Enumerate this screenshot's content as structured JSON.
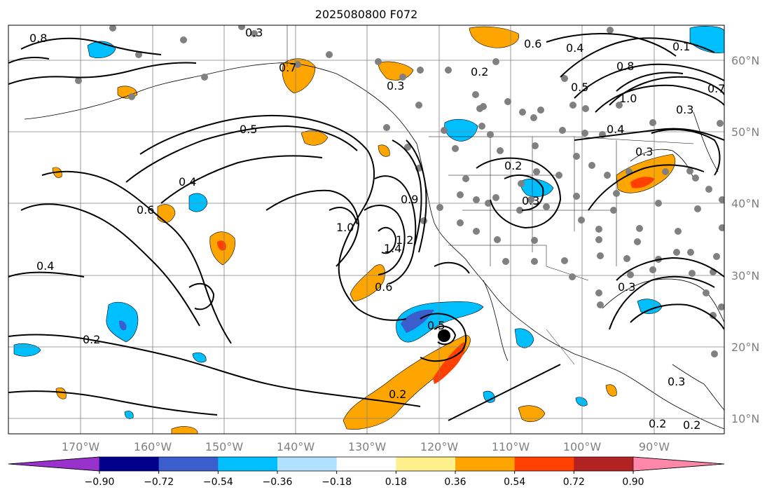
{
  "title": "2025080800 F072",
  "lon_labels": [
    "170°W",
    "160°W",
    "150°W",
    "140°W",
    "130°W",
    "120°W",
    "110°W",
    "100°W",
    "90°W"
  ],
  "lat_labels": [
    "60°N",
    "50°N",
    "40°N",
    "30°N",
    "20°N",
    "10°N"
  ],
  "colorbar": {
    "ticks": [
      "−0.90",
      "−0.72",
      "−0.54",
      "−0.36",
      "−0.18",
      "0.18",
      "0.36",
      "0.54",
      "0.72",
      "0.90"
    ],
    "colors": [
      "#9932cc",
      "#00008b",
      "#3a5fcd",
      "#00bfff",
      "#b0e2ff",
      "#ffffff",
      "#fff08c",
      "#ffa500",
      "#ff4000",
      "#b22222",
      "#ff88aa"
    ]
  },
  "contour_labels": [
    "0.8",
    "0.3",
    "0.6",
    "0.4",
    "0.2",
    "0.8",
    "1.0",
    "0.5",
    "0.3",
    "0.4",
    "0.3",
    "0.5",
    "0.4",
    "0.6",
    "0.2",
    "0.3",
    "1.0",
    "1.2",
    "1.4",
    "0.6",
    "0.4",
    "0.2",
    "0.5",
    "0.2",
    "0.3",
    "0.2",
    "0.2",
    "0.3",
    "0.3",
    "0.9",
    "0.7",
    "0.7",
    "0.1"
  ],
  "marker": {
    "name": "storm-center",
    "lon": "118.8°W",
    "lat": "21.5°N"
  }
}
